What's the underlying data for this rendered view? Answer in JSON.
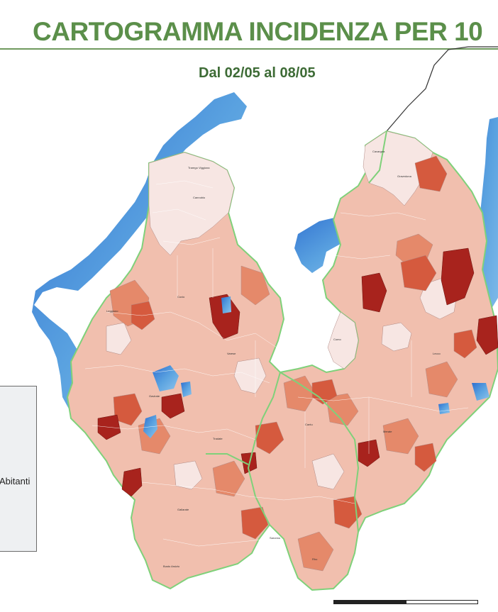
{
  "header": {
    "title": "CARTOGRAMMA INCIDENZA PER 10",
    "subtitle": "Dal 02/05 al 08/05"
  },
  "legend": {
    "label": "Abitanti"
  },
  "colors": {
    "title": "#5b8f4a",
    "lake": "#4a8fd8",
    "region_border": "#7fd17a",
    "very_low": "#f7e6e3",
    "low": "#f0b7a3",
    "medium": "#e5896a",
    "high": "#d55a3e",
    "very_high": "#a8231d",
    "extreme": "#7a1010"
  },
  "scale": {
    "ticks": [
      "0",
      "10",
      "20"
    ]
  }
}
